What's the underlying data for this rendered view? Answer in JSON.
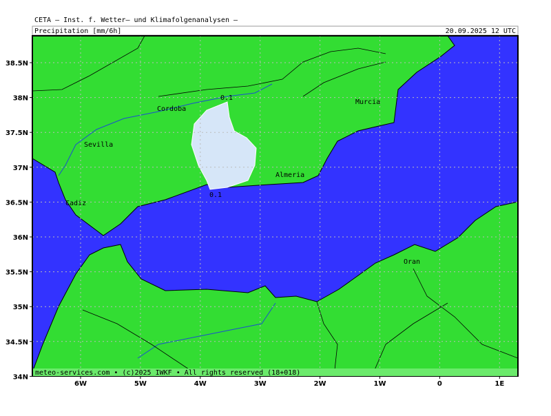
{
  "header": {
    "institute": "CETA — Inst. f. Wetter— und Klimafolgenanalysen —",
    "field": "Precipitation [mm/6h]",
    "valid": "20.09.2025 12 UTC"
  },
  "latitude_labels": [
    "38.5N",
    "38N",
    "37.5N",
    "37N",
    "36.5N",
    "36N",
    "35.5N",
    "35N",
    "34.5N",
    "34N"
  ],
  "longitude_labels": [
    "6W",
    "5W",
    "4W",
    "3W",
    "2W",
    "1W",
    "0",
    "1E"
  ],
  "places": [
    "Cordoba",
    "Sevilla",
    "Cadiz",
    "Almeria",
    "Murcia",
    "Oran"
  ],
  "contour_labels": [
    "0.1",
    "0.1"
  ],
  "footer": "meteo-services.com • (c)2025 IWKF • All rights reserved (18+018)"
}
